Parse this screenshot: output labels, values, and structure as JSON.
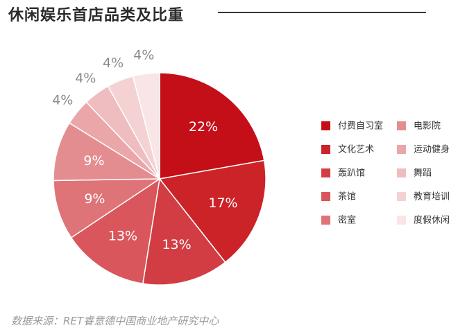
{
  "title": "休闲娱乐首店品类及比重",
  "source": "数据来源：RET睿意德中国商业地产研究中心",
  "chart_data": {
    "type": "pie",
    "title": "休闲娱乐首店品类及比重",
    "legend_position": "right",
    "slices": [
      {
        "label": "付费自习室",
        "value": 22,
        "display": "22%",
        "color": "#c40f18"
      },
      {
        "label": "文化艺术",
        "value": 17,
        "display": "17%",
        "color": "#cc2329"
      },
      {
        "label": "轰趴馆",
        "value": 13,
        "display": "13%",
        "color": "#d23d43"
      },
      {
        "label": "茶馆",
        "value": 13,
        "display": "13%",
        "color": "#d9565c"
      },
      {
        "label": "密室",
        "value": 9,
        "display": "9%",
        "color": "#de7378"
      },
      {
        "label": "电影院",
        "value": 9,
        "display": "9%",
        "color": "#e48d91"
      },
      {
        "label": "运动健身",
        "value": 4,
        "display": "4%",
        "color": "#eaa6a9"
      },
      {
        "label": "舞蹈",
        "value": 4,
        "display": "4%",
        "color": "#efbdbf"
      },
      {
        "label": "教育培训",
        "value": 4,
        "display": "4%",
        "color": "#f4d2d4"
      },
      {
        "label": "度假休闲",
        "value": 4,
        "display": "4%",
        "color": "#f9e5e6"
      }
    ]
  }
}
